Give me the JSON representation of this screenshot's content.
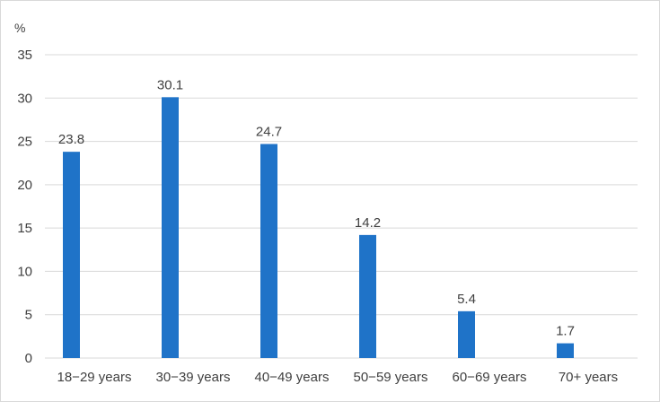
{
  "chart_data": {
    "type": "bar",
    "unit_label": "%",
    "categories": [
      "18−29 years",
      "30−39 years",
      "40−49 years",
      "50−59 years",
      "60−69 years",
      "70+ years"
    ],
    "values": [
      23.8,
      30.1,
      24.7,
      14.2,
      5.4,
      1.7
    ],
    "data_labels": [
      "23.8",
      "30.1",
      "24.7",
      "14.2",
      "5.4",
      "1.7"
    ],
    "ylim": [
      0,
      35
    ],
    "yticks": [
      0,
      5,
      10,
      15,
      20,
      25,
      30,
      35
    ],
    "grid": true,
    "legend": "none",
    "colors": {
      "bar": "#1f73c8",
      "grid": "#d9d9d9",
      "text": "#404040"
    }
  }
}
